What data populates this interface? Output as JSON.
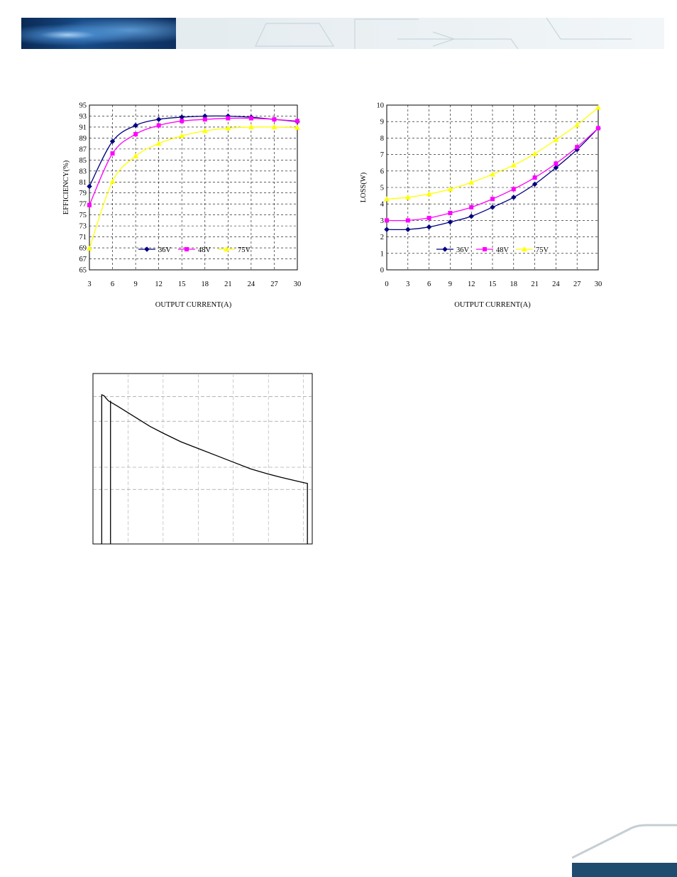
{
  "chart_data": [
    {
      "type": "line",
      "xlabel": "OUTPUT CURRENT(A)",
      "ylabel": "EFFICIENCY(%)",
      "x": [
        3,
        6,
        9,
        12,
        15,
        18,
        21,
        24,
        27,
        30
      ],
      "xlim": [
        3,
        30
      ],
      "ylim": [
        65,
        95
      ],
      "yticks": [
        65,
        67,
        69,
        71,
        73,
        75,
        77,
        79,
        81,
        83,
        85,
        87,
        89,
        91,
        93,
        95
      ],
      "xticks": [
        3,
        6,
        9,
        12,
        15,
        18,
        21,
        24,
        27,
        30
      ],
      "grid": true,
      "legend_position": "center-bottom",
      "series": [
        {
          "name": "36V",
          "color": "#000080",
          "marker": "diamond",
          "values": [
            80.2,
            88.4,
            91.3,
            92.4,
            92.8,
            93.0,
            93.0,
            92.8,
            92.4,
            92.0
          ]
        },
        {
          "name": "48V",
          "color": "#ff00ff",
          "marker": "square",
          "values": [
            76.8,
            86.2,
            89.7,
            91.3,
            92.1,
            92.4,
            92.6,
            92.6,
            92.4,
            92.1
          ]
        },
        {
          "name": "75V",
          "color": "#ffff00",
          "marker": "triangle",
          "values": [
            68.9,
            81.1,
            85.7,
            88.0,
            89.4,
            90.3,
            90.8,
            91.0,
            91.0,
            90.9
          ]
        }
      ]
    },
    {
      "type": "line",
      "xlabel": "OUTPUT CURRENT(A)",
      "ylabel": "LOSS(W)",
      "x": [
        0,
        3,
        6,
        9,
        12,
        15,
        18,
        21,
        24,
        27,
        30
      ],
      "xlim": [
        0,
        30
      ],
      "ylim": [
        0,
        10
      ],
      "yticks": [
        0,
        1,
        2,
        3,
        4,
        5,
        6,
        7,
        8,
        9,
        10
      ],
      "xticks": [
        0,
        3,
        6,
        9,
        12,
        15,
        18,
        21,
        24,
        27,
        30
      ],
      "grid": true,
      "legend_position": "center-bottom",
      "series": [
        {
          "name": "36V",
          "color": "#000080",
          "marker": "diamond",
          "values": [
            2.45,
            2.45,
            2.6,
            2.9,
            3.25,
            3.8,
            4.4,
            5.2,
            6.2,
            7.3,
            8.6
          ]
        },
        {
          "name": "48V",
          "color": "#ff00ff",
          "marker": "square",
          "values": [
            3.0,
            3.0,
            3.15,
            3.45,
            3.8,
            4.3,
            4.9,
            5.6,
            6.45,
            7.45,
            8.6
          ]
        },
        {
          "name": "75V",
          "color": "#ffff00",
          "marker": "triangle",
          "values": [
            4.3,
            4.4,
            4.6,
            4.9,
            5.3,
            5.8,
            6.35,
            7.05,
            7.9,
            8.8,
            9.85
          ]
        }
      ]
    },
    {
      "type": "line",
      "xlim": [
        0,
        1
      ],
      "ylim": [
        0,
        1
      ],
      "grid": true,
      "gridlines_y": [
        0.72,
        0.45,
        0.32
      ],
      "gridlines_x": [
        0.16,
        0.32,
        0.48,
        0.64,
        0.8,
        0.96
      ],
      "series": [
        {
          "color": "#000000",
          "x": [
            0.04,
            0.04,
            0.05,
            0.07,
            0.11,
            0.16,
            0.21,
            0.26,
            0.32,
            0.4,
            0.48,
            0.56,
            0.64,
            0.72,
            0.8,
            0.86,
            0.91,
            0.96,
            0.978,
            0.978
          ],
          "y": [
            0.0,
            0.875,
            0.87,
            0.84,
            0.81,
            0.77,
            0.73,
            0.69,
            0.65,
            0.6,
            0.56,
            0.52,
            0.48,
            0.44,
            0.41,
            0.39,
            0.375,
            0.36,
            0.355,
            0.0
          ]
        },
        {
          "color": "#000000",
          "x": [
            0.08,
            0.08
          ],
          "y": [
            0.0,
            0.84
          ]
        }
      ]
    }
  ]
}
